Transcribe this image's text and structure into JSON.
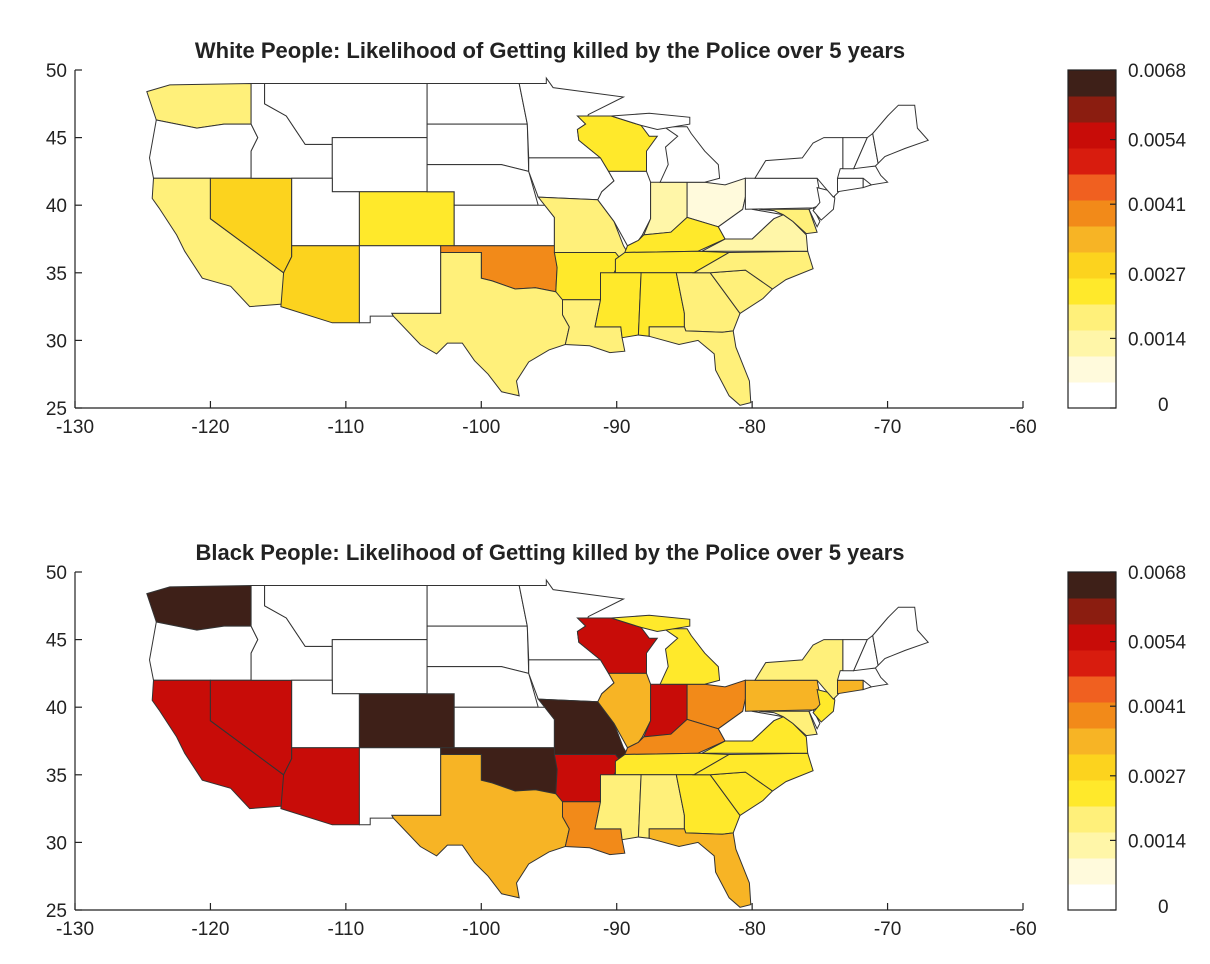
{
  "panels": [
    {
      "title": "White People: Likelihood of Getting killed by the Police over 5 years",
      "xticks": [
        "-130",
        "-120",
        "-110",
        "-100",
        "-90",
        "-80",
        "-70",
        "-60"
      ],
      "yticks": [
        "25",
        "30",
        "35",
        "40",
        "45",
        "50"
      ],
      "colorbar_ticks": [
        "0.0068",
        "0.0054",
        "0.0041",
        "0.0027",
        "0.0014",
        "0"
      ],
      "states": [
        {
          "name": "WA",
          "value": 0.0018
        },
        {
          "name": "NV",
          "value": 0.0026
        },
        {
          "name": "CA",
          "value": 0.0017
        },
        {
          "name": "AZ",
          "value": 0.0026
        },
        {
          "name": "CO",
          "value": 0.0023
        },
        {
          "name": "OK",
          "value": 0.004
        },
        {
          "name": "TX",
          "value": 0.0016
        },
        {
          "name": "MO",
          "value": 0.0019
        },
        {
          "name": "AR",
          "value": 0.0023
        },
        {
          "name": "LA",
          "value": 0.0017
        },
        {
          "name": "WI",
          "value": 0.002
        },
        {
          "name": "KY",
          "value": 0.0024
        },
        {
          "name": "TN",
          "value": 0.0021
        },
        {
          "name": "MS",
          "value": 0.0023
        },
        {
          "name": "AL",
          "value": 0.0023
        },
        {
          "name": "GA",
          "value": 0.0017
        },
        {
          "name": "FL",
          "value": 0.0018
        },
        {
          "name": "SC",
          "value": 0.0016
        },
        {
          "name": "NC",
          "value": 0.0016
        },
        {
          "name": "VA",
          "value": 0.0013
        },
        {
          "name": "IN",
          "value": 0.001
        },
        {
          "name": "OH",
          "value": 0.0008
        },
        {
          "name": "MD",
          "value": 0.0015
        }
      ]
    },
    {
      "title": "Black People: Likelihood of Getting killed by the Police over 5 years",
      "xticks": [
        "-130",
        "-120",
        "-110",
        "-100",
        "-90",
        "-80",
        "-70",
        "-60"
      ],
      "yticks": [
        "25",
        "30",
        "35",
        "40",
        "45",
        "50"
      ],
      "colorbar_ticks": [
        "0.0068",
        "0.0054",
        "0.0041",
        "0.0027",
        "0.0014",
        "0"
      ],
      "states": [
        {
          "name": "WA",
          "value": 0.0068
        },
        {
          "name": "CA",
          "value": 0.0054
        },
        {
          "name": "NV",
          "value": 0.0054
        },
        {
          "name": "AZ",
          "value": 0.0054
        },
        {
          "name": "CO",
          "value": 0.0068
        },
        {
          "name": "OK",
          "value": 0.0068
        },
        {
          "name": "MO",
          "value": 0.0068
        },
        {
          "name": "TX",
          "value": 0.0032
        },
        {
          "name": "AR",
          "value": 0.0054
        },
        {
          "name": "LA",
          "value": 0.004
        },
        {
          "name": "WI",
          "value": 0.0054
        },
        {
          "name": "IL",
          "value": 0.0032
        },
        {
          "name": "IN",
          "value": 0.0054
        },
        {
          "name": "OH",
          "value": 0.004
        },
        {
          "name": "KY",
          "value": 0.004
        },
        {
          "name": "MI",
          "value": 0.0024
        },
        {
          "name": "PA",
          "value": 0.0032
        },
        {
          "name": "NY",
          "value": 0.0019
        },
        {
          "name": "CT",
          "value": 0.0032
        },
        {
          "name": "NJ",
          "value": 0.0024
        },
        {
          "name": "TN",
          "value": 0.0023
        },
        {
          "name": "MS",
          "value": 0.0019
        },
        {
          "name": "AL",
          "value": 0.0019
        },
        {
          "name": "GA",
          "value": 0.0023
        },
        {
          "name": "FL",
          "value": 0.0032
        },
        {
          "name": "SC",
          "value": 0.0021
        },
        {
          "name": "NC",
          "value": 0.0023
        },
        {
          "name": "VA",
          "value": 0.0021
        },
        {
          "name": "MD",
          "value": 0.0017
        }
      ]
    }
  ],
  "colormap": [
    "#ffffff",
    "#fffadc",
    "#fff6a8",
    "#fff07a",
    "#ffe92b",
    "#fcd31e",
    "#f7b425",
    "#f28a19",
    "#f06020",
    "#d81c0e",
    "#c80c08",
    "#8b1d10",
    "#3e2018"
  ],
  "vmin": 0,
  "vmax": 0.0068
}
